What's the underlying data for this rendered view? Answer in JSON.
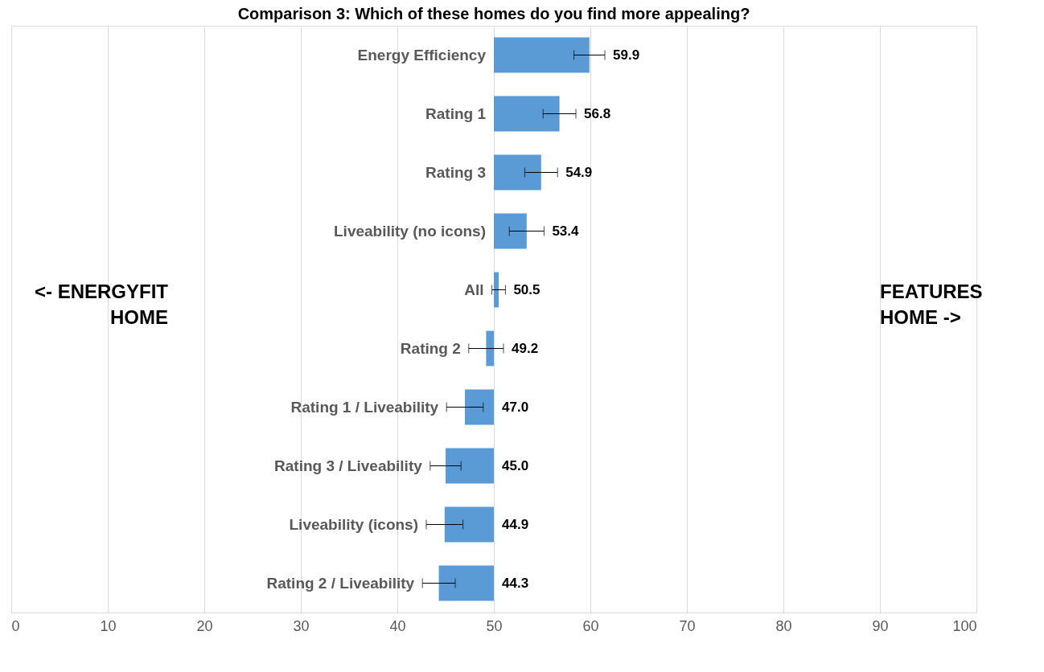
{
  "chart_data": {
    "type": "bar",
    "orientation": "horizontal",
    "title": "Comparison 3: Which of these homes do you find more appealing?",
    "categories": [
      "Energy Efficiency",
      "Rating 1",
      "Rating 3",
      "Liveability (no icons)",
      "All",
      "Rating 2",
      "Rating 1 / Liveability",
      "Rating 3 / Liveability",
      "Liveability (icons)",
      "Rating 2 / Liveability"
    ],
    "base": [
      50,
      50,
      50,
      50,
      50,
      50,
      50,
      50,
      50,
      50
    ],
    "values": [
      9.9,
      6.8,
      4.9,
      3.4,
      0.5,
      -0.8,
      -3.0,
      -5.0,
      -5.1,
      -5.7
    ],
    "value_labels": [
      "59.9",
      "56.8",
      "54.9",
      "53.4",
      "50.5",
      "49.2",
      "47.0",
      "45.0",
      "44.9",
      "44.3"
    ],
    "errors": [
      1.6,
      1.7,
      1.7,
      1.8,
      0.7,
      1.8,
      1.9,
      1.6,
      1.9,
      1.7
    ],
    "color": "#5b9bd5",
    "xlim": [
      0,
      100
    ],
    "xticks": [
      0,
      10,
      20,
      30,
      40,
      50,
      60,
      70,
      80,
      90,
      100
    ],
    "grid": "x",
    "annotations": [
      "<- ENERGYFIT HOME",
      "FEATURES HOME ->"
    ]
  }
}
